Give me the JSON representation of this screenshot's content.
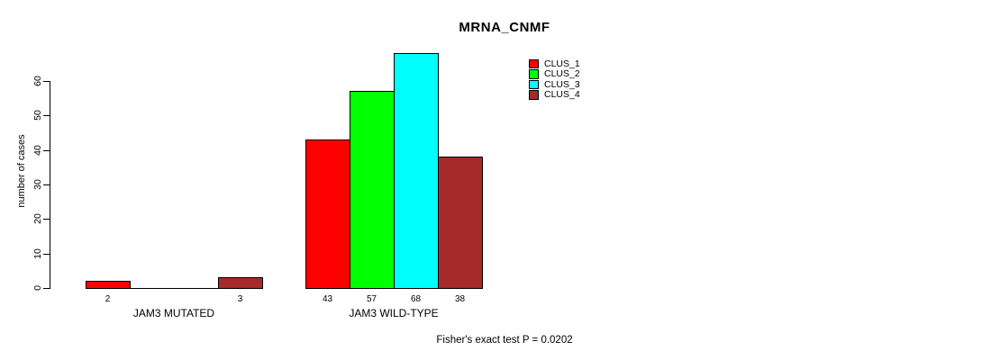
{
  "chart_data": {
    "type": "bar",
    "title": "MRNA_CNMF",
    "ylabel": "number of cases",
    "ylim": [
      0,
      60
    ],
    "yticks": [
      0,
      10,
      20,
      30,
      40,
      50,
      60
    ],
    "grid": false,
    "legend_position": "top-right-inside",
    "categories": [
      "JAM3 MUTATED",
      "JAM3 WILD-TYPE"
    ],
    "series": [
      {
        "name": "CLUS_1",
        "color": "#FF0000",
        "values": [
          2,
          43
        ]
      },
      {
        "name": "CLUS_2",
        "color": "#00FF00",
        "values": [
          0,
          57
        ]
      },
      {
        "name": "CLUS_3",
        "color": "#00FFFF",
        "values": [
          0,
          68
        ]
      },
      {
        "name": "CLUS_4",
        "color": "#A52A2A",
        "values": [
          3,
          38
        ]
      }
    ],
    "bar_value_labels": [
      [
        "2",
        "",
        "",
        "3"
      ],
      [
        "43",
        "57",
        "68",
        "38"
      ]
    ],
    "footnote": "Fisher's exact test P = 0.0202",
    "colors": {
      "background": "#FFFFFF",
      "axis": "#000000",
      "text": "#000000"
    }
  }
}
